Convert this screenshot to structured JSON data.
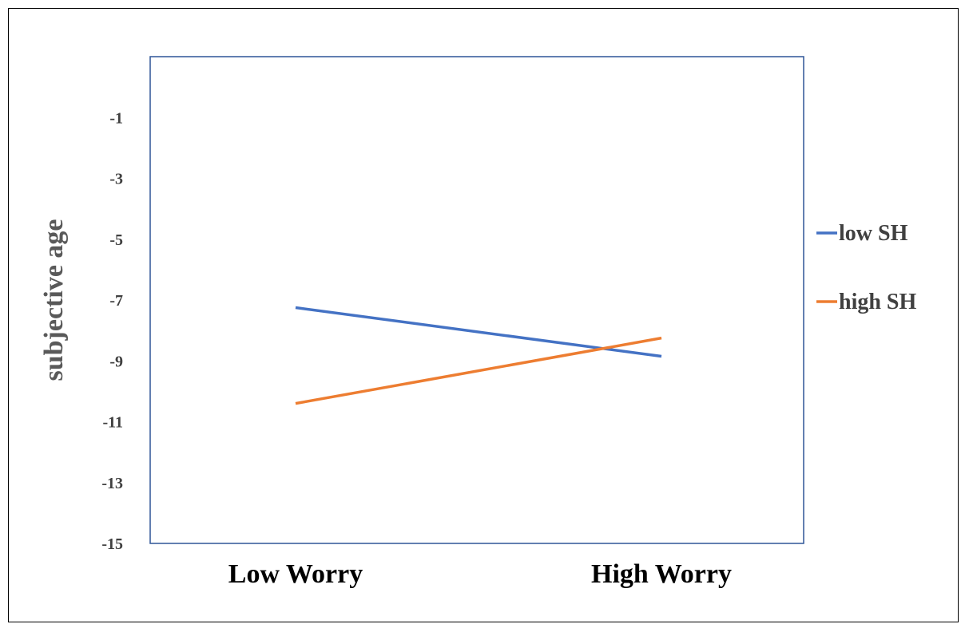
{
  "chart_data": {
    "type": "line",
    "title": "",
    "xlabel": "",
    "ylabel": "subjective age",
    "categories": [
      "Low Worry",
      "High Worry"
    ],
    "y_ticks": [
      -1,
      -3,
      -5,
      -7,
      -9,
      -11,
      -13,
      -15
    ],
    "ylim": [
      -15,
      1
    ],
    "grid": false,
    "legend_position": "right",
    "series": [
      {
        "name": "low SH",
        "values": [
          -7.25,
          -8.85
        ],
        "color": "#4472c4"
      },
      {
        "name": "high SH",
        "values": [
          -10.4,
          -8.25
        ],
        "color": "#ed7d31"
      }
    ],
    "plot_border_color": "#2f5597"
  }
}
